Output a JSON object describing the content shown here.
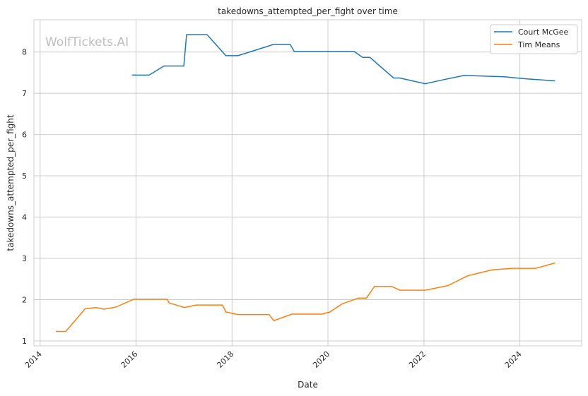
{
  "chart_data": {
    "type": "line",
    "title": "takedowns_attempted_per_fight over time",
    "xlabel": "Date",
    "ylabel": "takedowns_attempted_per_fight",
    "watermark": "WolfTickets.AI",
    "grid": true,
    "legend_position": "top-right",
    "xlim": [
      "2013-11-15",
      "2025-04-15"
    ],
    "ylim": [
      0.88,
      8.78
    ],
    "x_ticks": [
      "2014-01-01",
      "2016-01-01",
      "2018-01-01",
      "2020-01-01",
      "2022-01-01",
      "2024-01-01"
    ],
    "x_tick_labels": [
      "2014",
      "2016",
      "2018",
      "2020",
      "2022",
      "2024"
    ],
    "y_ticks": [
      1,
      2,
      3,
      4,
      5,
      6,
      7,
      8
    ],
    "y_tick_labels": [
      "1",
      "2",
      "3",
      "4",
      "5",
      "6",
      "7",
      "8"
    ],
    "series": [
      {
        "name": "Court McGee",
        "color": "#1f77b4",
        "points": [
          [
            "2015-12-01",
            7.44
          ],
          [
            "2016-04-10",
            7.44
          ],
          [
            "2016-08-01",
            7.66
          ],
          [
            "2016-12-30",
            7.66
          ],
          [
            "2017-01-20",
            8.42
          ],
          [
            "2017-06-25",
            8.42
          ],
          [
            "2017-11-15",
            7.91
          ],
          [
            "2018-02-15",
            7.91
          ],
          [
            "2018-11-10",
            8.18
          ],
          [
            "2019-03-20",
            8.18
          ],
          [
            "2019-04-20",
            8.01
          ],
          [
            "2020-07-20",
            8.01
          ],
          [
            "2020-09-20",
            7.87
          ],
          [
            "2020-11-15",
            7.87
          ],
          [
            "2021-05-15",
            7.37
          ],
          [
            "2021-07-01",
            7.37
          ],
          [
            "2022-01-10",
            7.23
          ],
          [
            "2022-06-01",
            7.33
          ],
          [
            "2022-11-01",
            7.43
          ],
          [
            "2023-02-15",
            7.42
          ],
          [
            "2023-09-01",
            7.4
          ],
          [
            "2024-02-15",
            7.35
          ],
          [
            "2024-09-25",
            7.3
          ]
        ]
      },
      {
        "name": "Tim Means",
        "color": "#ff7f0e",
        "points": [
          [
            "2014-05-01",
            1.23
          ],
          [
            "2014-07-15",
            1.23
          ],
          [
            "2014-12-10",
            1.78
          ],
          [
            "2015-03-05",
            1.81
          ],
          [
            "2015-05-01",
            1.77
          ],
          [
            "2015-08-01",
            1.82
          ],
          [
            "2015-12-15",
            2.01
          ],
          [
            "2016-08-25",
            2.01
          ],
          [
            "2016-09-10",
            1.92
          ],
          [
            "2017-01-05",
            1.81
          ],
          [
            "2017-04-01",
            1.87
          ],
          [
            "2017-10-20",
            1.87
          ],
          [
            "2017-11-15",
            1.7
          ],
          [
            "2018-02-15",
            1.64
          ],
          [
            "2018-10-10",
            1.64
          ],
          [
            "2018-11-15",
            1.49
          ],
          [
            "2019-04-01",
            1.65
          ],
          [
            "2019-11-15",
            1.65
          ],
          [
            "2020-01-15",
            1.7
          ],
          [
            "2020-04-20",
            1.9
          ],
          [
            "2020-08-20",
            2.04
          ],
          [
            "2020-10-20",
            2.04
          ],
          [
            "2020-12-20",
            2.32
          ],
          [
            "2021-05-01",
            2.32
          ],
          [
            "2021-07-01",
            2.23
          ],
          [
            "2022-01-10",
            2.23
          ],
          [
            "2022-07-01",
            2.34
          ],
          [
            "2022-12-01",
            2.58
          ],
          [
            "2023-06-01",
            2.72
          ],
          [
            "2023-11-01",
            2.76
          ],
          [
            "2024-05-01",
            2.76
          ],
          [
            "2024-09-25",
            2.89
          ]
        ]
      }
    ]
  }
}
